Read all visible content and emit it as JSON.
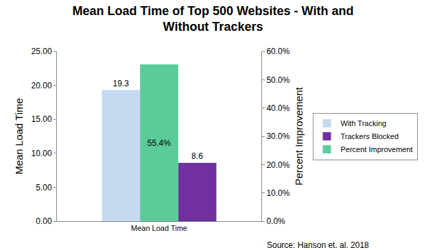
{
  "chart_data": {
    "type": "bar",
    "title": "Mean Load Time of Top 500 Websites - With and Without Trackers",
    "x_label": null,
    "y_label": "Mean Load Time",
    "y2_label": "Percent Improvement",
    "categories": [
      "Mean Load Time"
    ],
    "series": [
      {
        "name": "With Tracking",
        "color": "#c6d9f1",
        "values": [
          19.3
        ]
      },
      {
        "name": "Percent Improvement",
        "color": "#5ccb9a",
        "values": [
          55.4
        ],
        "value_labels": [
          "55.4%"
        ],
        "axis": "y2"
      },
      {
        "name": "Trackers Blocked",
        "color": "#7030a0",
        "values": [
          8.6
        ]
      }
    ],
    "legend_order": [
      "With Tracking",
      "Trackers Blocked",
      "Percent Improvement"
    ],
    "ylim": [
      0,
      25
    ],
    "yticks": [
      {
        "value": 0,
        "label": "0.00"
      },
      {
        "value": 5,
        "label": "5.00"
      },
      {
        "value": 10,
        "label": "10.00"
      },
      {
        "value": 15,
        "label": "15.00"
      },
      {
        "value": 20,
        "label": "20.00"
      },
      {
        "value": 25,
        "label": "25.00"
      }
    ],
    "y2lim": [
      0,
      60
    ],
    "y2ticks": [
      {
        "value": 0,
        "label": "0.0%"
      },
      {
        "value": 10,
        "label": "10.0%"
      },
      {
        "value": 20,
        "label": "20.0%"
      },
      {
        "value": 30,
        "label": "30.0%"
      },
      {
        "value": 40,
        "label": "40.0%"
      },
      {
        "value": 50,
        "label": "50.0%"
      },
      {
        "value": 60,
        "label": "60.0%"
      }
    ],
    "annotations": [
      "Source: Hanson et. al. 2018"
    ],
    "data_labels": true,
    "grid": false,
    "legend": "right"
  }
}
